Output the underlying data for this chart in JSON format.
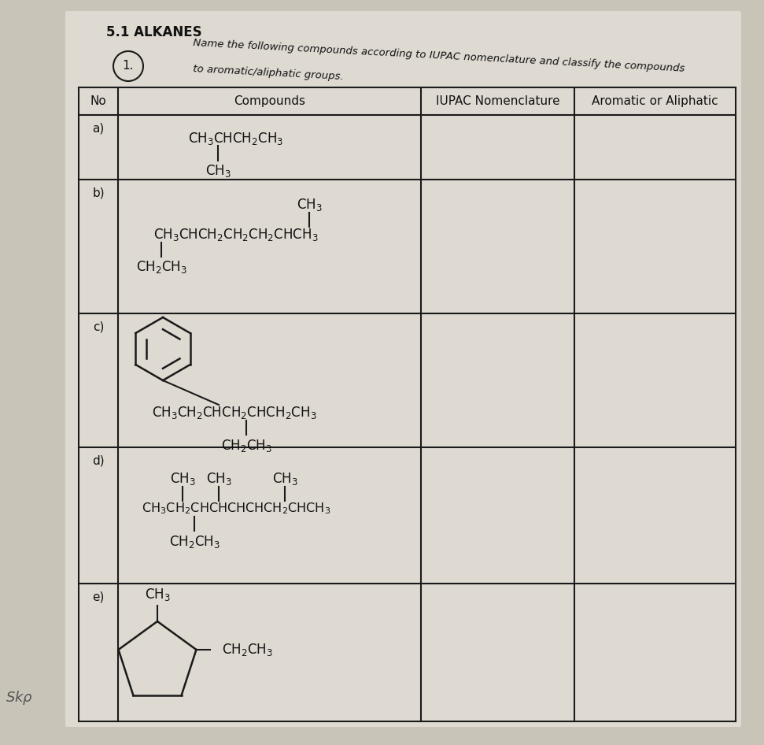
{
  "title": "5.1 ALKANES",
  "subtitle_line1": "Name the following compounds according to IUPAC nomenclature and classify the compounds",
  "subtitle_line2": "to aromatic/aliphatic groups.",
  "question_number": "1.",
  "col_headers": [
    "No",
    "Compounds",
    "IUPAC Nomenclature",
    "Aromatic or Aliphatic"
  ],
  "row_labels": [
    "a)",
    "b)",
    "c)",
    "d)",
    "e)"
  ],
  "bg_color": "#c8c4b8",
  "paper_color": "#dedad2",
  "line_color": "#1a1a1a",
  "text_color": "#111111"
}
